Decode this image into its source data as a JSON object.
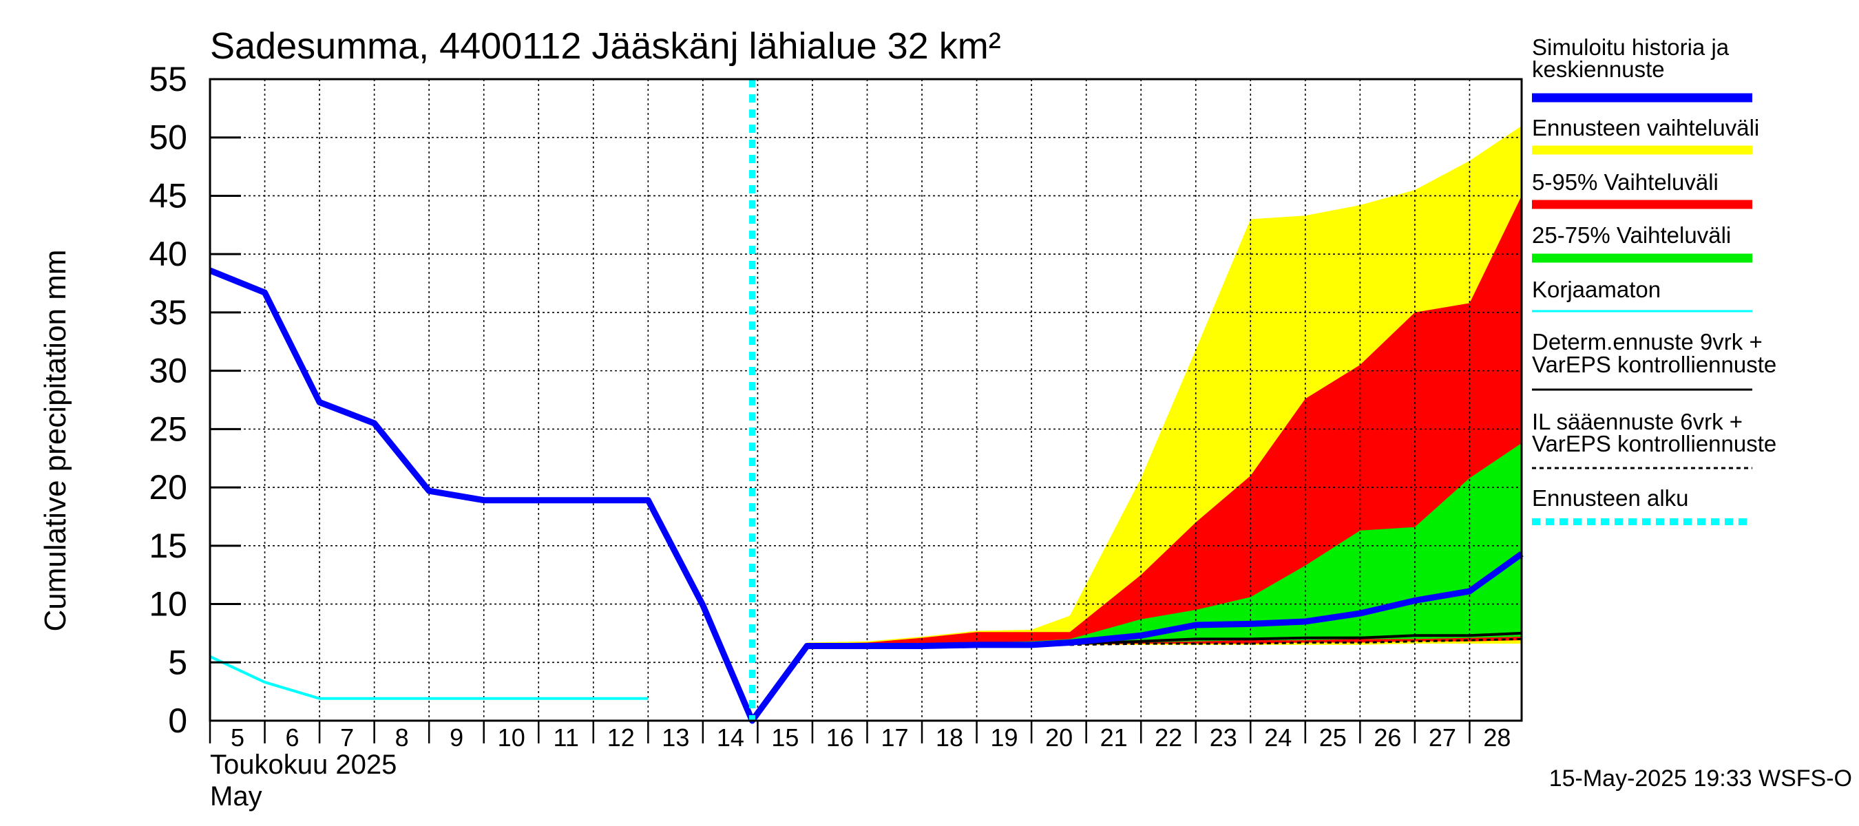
{
  "chart_data": {
    "type": "area",
    "title": "Sadesumma, 4400112 Jääskänj lähialue 32 km²",
    "ylabel": "Cumulative precipitation   mm",
    "xlabel_month": "Toukokuu  2025",
    "xlabel_month_en": "May",
    "footer": "15-May-2025 19:33 WSFS-O",
    "ylim": [
      0,
      55
    ],
    "yticks": [
      0,
      5,
      10,
      15,
      20,
      25,
      30,
      35,
      40,
      45,
      50,
      55
    ],
    "xlim": [
      5,
      28.95
    ],
    "xticks": [
      5,
      6,
      7,
      8,
      9,
      10,
      11,
      12,
      13,
      14,
      15,
      16,
      17,
      18,
      19,
      20,
      21,
      22,
      23,
      24,
      25,
      26,
      27,
      28
    ],
    "grid": true,
    "forecast_start": 14.9,
    "legend": [
      {
        "label": "Simuloitu historia ja\nkeskiennuste",
        "color": "#0000ff",
        "style": "thick"
      },
      {
        "label": "Ennusteen vaihteluväli",
        "color": "#ffff00",
        "style": "thick"
      },
      {
        "label": "5-95% Vaihteluväli",
        "color": "#ff0000",
        "style": "thick"
      },
      {
        "label": "25-75% Vaihteluväli",
        "color": "#00ee00",
        "style": "thick"
      },
      {
        "label": "Korjaamaton",
        "color": "#00ffff",
        "style": "thin"
      },
      {
        "label": "Determ.ennuste 9vrk  +\nVarEPS kontrolliennuste",
        "color": "#000000",
        "style": "thin"
      },
      {
        "label": "IL sääennuste 6vrk  +\n  VarEPS kontrolliennuste",
        "color": "#000000",
        "style": "dashed"
      },
      {
        "label": "Ennusteen alku",
        "color": "#00ffff",
        "style": "dotted"
      }
    ],
    "bands": [
      {
        "name": "Ennusteen vaihteluväli",
        "color": "#ffff00",
        "x": [
          15.9,
          17,
          18,
          19,
          20,
          20.7,
          22,
          23,
          24,
          25,
          26,
          27,
          28,
          28.95
        ],
        "upper": [
          6.7,
          6.8,
          7.2,
          7.7,
          7.8,
          9.0,
          20.8,
          31.8,
          43.0,
          43.3,
          44.2,
          45.5,
          48.0,
          51.0
        ],
        "lower": [
          6.4,
          6.4,
          6.4,
          6.5,
          6.5,
          6.5,
          6.5,
          6.5,
          6.5,
          6.5,
          6.5,
          6.6,
          6.6,
          6.6
        ]
      },
      {
        "name": "5-95% Vaihteluväli",
        "color": "#ff0000",
        "x": [
          15.9,
          17,
          18,
          19,
          20,
          20.7,
          22,
          23,
          24,
          25,
          26,
          27,
          28,
          28.95
        ],
        "upper": [
          6.6,
          6.7,
          7.1,
          7.6,
          7.6,
          7.6,
          12.5,
          17.0,
          21.0,
          27.6,
          30.5,
          35.0,
          35.8,
          45.0
        ],
        "lower": [
          6.4,
          6.4,
          6.4,
          6.5,
          6.5,
          6.5,
          6.6,
          6.6,
          6.6,
          6.7,
          6.7,
          6.8,
          6.8,
          6.9
        ]
      },
      {
        "name": "25-75% Vaihteluväli",
        "color": "#00ee00",
        "x": [
          15.9,
          17,
          18,
          19,
          20,
          20.7,
          22,
          23,
          24,
          25,
          26,
          27,
          28,
          28.95
        ],
        "upper": [
          6.5,
          6.6,
          6.6,
          6.7,
          6.8,
          7.0,
          8.7,
          9.5,
          10.6,
          13.3,
          16.3,
          16.6,
          20.8,
          23.8
        ],
        "lower": [
          6.4,
          6.4,
          6.4,
          6.5,
          6.5,
          6.6,
          6.7,
          6.8,
          6.9,
          6.9,
          7.0,
          7.0,
          7.1,
          7.2
        ]
      }
    ],
    "series": [
      {
        "name": "Simuloitu historia ja keskiennuste",
        "color": "#0000ff",
        "style": "thick",
        "x": [
          5,
          6,
          7,
          8,
          9,
          10,
          11,
          12,
          13,
          14,
          14.9,
          15.9,
          17,
          18,
          19,
          20,
          20.7,
          22,
          23,
          24,
          25,
          26,
          27,
          28,
          28.95
        ],
        "y": [
          38.6,
          36.7,
          27.3,
          25.5,
          19.7,
          18.9,
          18.9,
          18.9,
          18.9,
          9.9,
          0,
          6.4,
          6.4,
          6.4,
          6.5,
          6.5,
          6.7,
          7.3,
          8.2,
          8.3,
          8.5,
          9.2,
          10.3,
          11.1,
          14.3
        ]
      },
      {
        "name": "Korjaamaton",
        "color": "#00ffff",
        "style": "thin",
        "x": [
          5,
          6,
          7,
          8,
          9,
          10,
          11,
          12,
          13
        ],
        "y": [
          5.5,
          3.3,
          1.9,
          1.9,
          1.9,
          1.9,
          1.9,
          1.9,
          1.9
        ]
      },
      {
        "name": "Determ.ennuste 9vrk + VarEPS kontrolliennuste",
        "color": "#000000",
        "style": "thin",
        "x": [
          20.7,
          22,
          23,
          24,
          25,
          26,
          27,
          28,
          28.95
        ],
        "y": [
          6.6,
          6.8,
          7.0,
          7.0,
          7.1,
          7.1,
          7.3,
          7.3,
          7.5
        ]
      },
      {
        "name": "IL sääennuste 6vrk + VarEPS kontrolliennuste",
        "color": "#000000",
        "style": "dashed",
        "x": [
          20.7,
          22,
          23,
          24,
          25,
          26,
          27,
          28,
          28.95
        ],
        "y": [
          6.5,
          6.6,
          6.6,
          6.6,
          6.7,
          6.7,
          6.8,
          6.9,
          7.0
        ]
      }
    ]
  }
}
